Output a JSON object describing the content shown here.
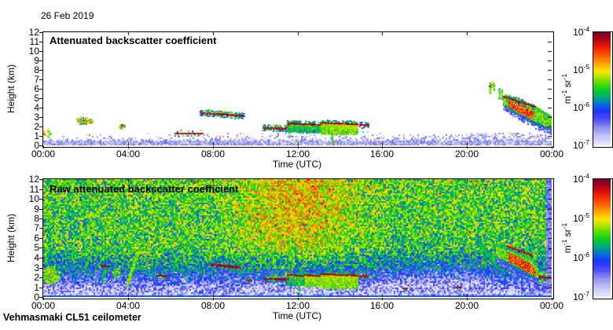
{
  "header": {
    "date_label": "26 Feb 2019",
    "footer": "Vehmasmaki CL51 ceilometer"
  },
  "colorbar": {
    "ticks": [
      {
        "b": "10",
        "e": "-4"
      },
      {
        "b": "10",
        "e": "-5"
      },
      {
        "b": "10",
        "e": "-6"
      },
      {
        "b": "10",
        "e": "-7"
      }
    ],
    "unit_parts": [
      [
        "m",
        "-1"
      ],
      [
        " sr",
        "-1"
      ]
    ]
  },
  "chart_data": {
    "type": "heatmap",
    "title_date": "26 Feb 2019",
    "station": "Vehmasmaki CL51 ceilometer",
    "x": {
      "label": "Time (UTC)",
      "range_hours": [
        0,
        24
      ],
      "ticks": [
        "00:00",
        "04:00",
        "08:00",
        "12:00",
        "16:00",
        "20:00",
        "00:00"
      ]
    },
    "y": {
      "label": "Height (km)",
      "range_km": [
        0,
        12
      ],
      "ticks": [
        "0",
        "1",
        "2",
        "3",
        "4",
        "5",
        "6",
        "7",
        "8",
        "9",
        "10",
        "11",
        "12"
      ]
    },
    "colorscale": {
      "unit": "m^-1 sr^-1",
      "scale": "log",
      "min": 1e-07,
      "max": 0.0001,
      "palette_low_to_high": [
        "#e8e8fa",
        "#9292f0",
        "#1e32ff",
        "#006edc",
        "#00cd28",
        "#aae600",
        "#ffe400",
        "#ffba00",
        "#ff7800",
        "#de0f0a",
        "#a0001c",
        "#70002e"
      ]
    },
    "panels": [
      {
        "title": "Attenuated backscatter coefficient",
        "style": "processed",
        "features": {
          "blobs": [
            [
              1.85,
              2.7,
              0.3,
              0.38,
              70,
              0
            ],
            [
              2.2,
              2.65,
              0.1,
              0.25,
              22,
              0
            ],
            [
              3.7,
              2.05,
              0.15,
              0.25,
              28,
              0
            ],
            [
              0.15,
              1.3,
              0.2,
              0.5,
              20,
              0
            ],
            [
              11.9,
              2.6,
              0.06,
              0.07,
              8,
              0
            ],
            [
              21.15,
              6.55,
              0.12,
              0.3,
              10,
              1
            ],
            [
              23.75,
              2.7,
              0.2,
              0.5,
              60,
              0
            ]
          ],
          "dashes": [
            [
              6.2,
              7.5,
              1.35,
              1.35,
              2,
              0.15
            ],
            [
              7.4,
              9.45,
              3.55,
              3.18,
              2,
              0.45
            ],
            [
              10.35,
              11.55,
              1.95,
              1.85,
              2,
              0.4
            ],
            [
              14.9,
              15.35,
              2.25,
              2.2,
              2,
              0.4
            ]
          ],
          "clouds": [
            [
              11.5,
              12.3,
              2.4,
              2.3,
              1.5,
              0
            ],
            [
              12.35,
              13.4,
              2.35,
              2.2,
              1.45,
              0
            ],
            [
              13.1,
              14.8,
              2.45,
              2.3,
              1.3,
              1
            ]
          ],
          "streaks": [
            [
              21.05,
              5.6,
              6.8,
              1
            ],
            [
              21.25,
              5.9,
              6.5,
              0
            ],
            [
              21.5,
              5.0,
              6.1,
              0
            ],
            [
              21.62,
              4.9,
              5.9,
              0
            ]
          ],
          "vlines": [
            [
              13.6,
              0.2,
              1.6
            ]
          ],
          "virga": {
            "ts": [
              21.7,
              22.1,
              22.5,
              22.9,
              23.2,
              23.6,
              24
            ],
            "top": [
              5.3,
              5.15,
              4.9,
              4.5,
              4.2,
              3.6,
              3.1
            ],
            "bot": [
              4.3,
              3.7,
              3.2,
              2.7,
              2.3,
              2.0,
              1.7
            ],
            "gaps": [
              [
                22.32,
                22.38
              ],
              [
                22.72,
                22.78
              ],
              [
                22.9,
                22.94
              ],
              [
                23.25,
                23.3
              ]
            ],
            "hot": [
              21.95,
              23.15
            ],
            "topline": [
              21.7,
              23.2,
              5.25,
              4.15,
              2,
              0.2
            ]
          }
        }
      },
      {
        "title": "Raw attenuated backscatter coefficient",
        "style": "raw",
        "features": {
          "blobs": [
            [
              0.3,
              2.3,
              0.45,
              0.9,
              260,
              1
            ],
            [
              3.4,
              2.6,
              0.25,
              0.5,
              40,
              1
            ],
            [
              4.7,
              4.3,
              0.8,
              1.6,
              150,
              1
            ],
            [
              23.45,
              2.1,
              0.33,
              0.6,
              140,
              1
            ]
          ],
          "dashes": [
            [
              2.7,
              3.1,
              3.25,
              3.2,
              2,
              0.3
            ],
            [
              5.35,
              5.8,
              2.25,
              2.2,
              2,
              0.3
            ],
            [
              7.9,
              9.3,
              3.4,
              3.1,
              3,
              0.5
            ],
            [
              9.55,
              9.8,
              1.75,
              1.75,
              2,
              0.3
            ],
            [
              10.35,
              11.55,
              1.95,
              1.85,
              2,
              0.4
            ],
            [
              14.9,
              15.3,
              2.2,
              2.2,
              2,
              0.3
            ],
            [
              16.95,
              17.15,
              0.95,
              0.95,
              2,
              0.2
            ],
            [
              19.45,
              19.7,
              1.05,
              1.05,
              2,
              0.2
            ],
            [
              23.25,
              23.85,
              2.18,
              2.02,
              2,
              0.3
            ]
          ],
          "clouds": [
            [
              11.5,
              12.3,
              2.3,
              2.2,
              1.3,
              0
            ],
            [
              12.35,
              13.4,
              2.3,
              2.15,
              1.2,
              1
            ],
            [
              13.1,
              14.8,
              2.4,
              2.25,
              1.0,
              1
            ]
          ],
          "plumes": [
            [
              3.95,
              1.4,
              4.55,
              5.4,
              1
            ],
            [
              2.75,
              2.0,
              2.95,
              3.1,
              0
            ],
            [
              20.55,
              5.6,
              21.35,
              3.4,
              0
            ]
          ],
          "vlines": [
            [
              12.05,
              0.3,
              1.8
            ]
          ],
          "virga": {
            "ts": [
              21.35,
              21.9,
              22.4,
              22.9,
              23.3
            ],
            "top": [
              5.4,
              5.25,
              4.8,
              4.2,
              3.3
            ],
            "bot": [
              4.1,
              3.4,
              2.8,
              2.2,
              1.8
            ],
            "gaps": [
              [
                22.52,
                22.56
              ],
              [
                23.0,
                23.05
              ]
            ],
            "hot": [
              21.95,
              23.25
            ],
            "topline": [
              21.85,
              23.05,
              5.25,
              4.3,
              2,
              0.3
            ]
          },
          "noise": {
            "pale_right_after_hour": 23.72,
            "day_enhance": 0.16,
            "day_center": 12,
            "day_width": 2.6
          }
        }
      }
    ]
  }
}
